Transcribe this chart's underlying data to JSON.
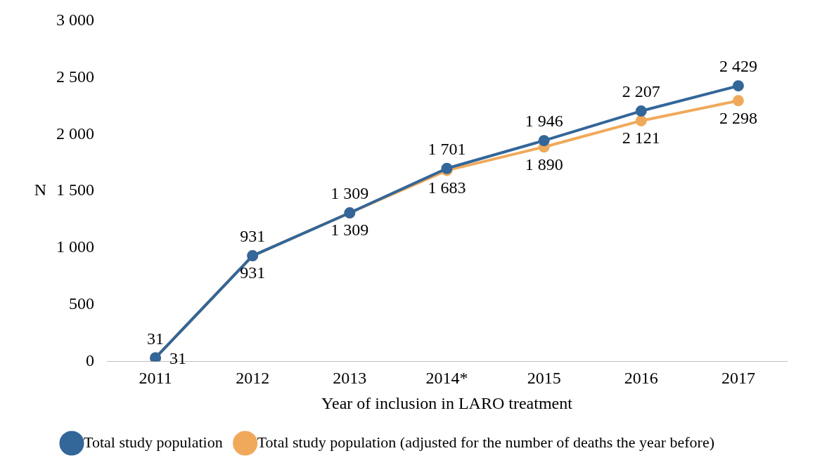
{
  "chart_data": {
    "type": "line",
    "xlabel": "Year of inclusion in LARO treatment",
    "ylabel": "N",
    "categories": [
      "2011",
      "2012",
      "2013",
      "2014*",
      "2015",
      "2016",
      "2017"
    ],
    "series": [
      {
        "name": "Total study population",
        "color": "#336699",
        "values": [
          31,
          931,
          1309,
          1701,
          1946,
          2207,
          2429
        ],
        "value_labels": [
          "31",
          "931",
          "1 309",
          "1 701",
          "1 946",
          "2 207",
          "2 429"
        ]
      },
      {
        "name": "Total study population (adjusted for the number of deaths the year before)",
        "color": "#f0a95a",
        "values": [
          31,
          931,
          1309,
          1683,
          1890,
          2121,
          2298
        ],
        "value_labels": [
          "31",
          "931",
          "1 309",
          "1 683",
          "1 890",
          "2 121",
          "2 298"
        ]
      }
    ],
    "ylim": [
      0,
      3000
    ],
    "yticks": [
      {
        "value": 0,
        "label": "0"
      },
      {
        "value": 500,
        "label": "500"
      },
      {
        "value": 1000,
        "label": "1 000"
      },
      {
        "value": 1500,
        "label": "1 500"
      },
      {
        "value": 2000,
        "label": "2 000"
      },
      {
        "value": 2500,
        "label": "2 500"
      },
      {
        "value": 3000,
        "label": "3 000"
      }
    ],
    "grid": false,
    "legend": "bottom",
    "marker": "circle",
    "line_style": "solid"
  }
}
